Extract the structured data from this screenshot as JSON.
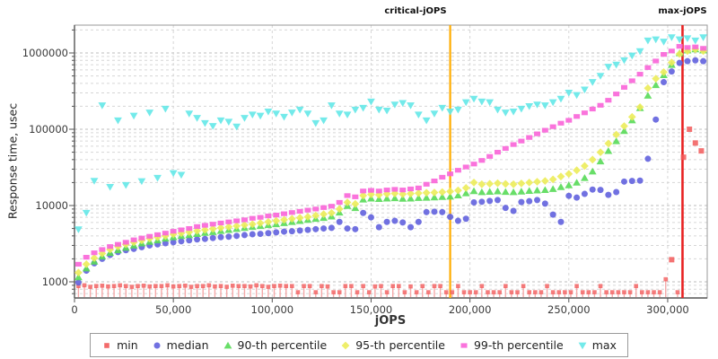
{
  "chart_data": {
    "type": "scatter",
    "title": "",
    "x_axis": {
      "label": "jOPS",
      "min": 0,
      "max": 320000,
      "tick_values": [
        0,
        50000,
        100000,
        150000,
        200000,
        250000,
        300000
      ],
      "tick_labels": [
        "0",
        "50,000",
        "100,000",
        "150,000",
        "200,000",
        "250,000",
        "300,000"
      ]
    },
    "y_axis": {
      "label": "Response time, usec",
      "scale": "log",
      "tick_values": [
        1000,
        10000,
        100000,
        1000000
      ],
      "tick_labels": [
        "1000",
        "10000",
        "100000",
        "1000000"
      ]
    },
    "grid": true,
    "legend_position": "bottom",
    "colors": {
      "grid_major": "#bdbdbd",
      "grid_minor": "#d6d6d6",
      "plot_border": "#999999",
      "axis_line": "#555555"
    },
    "vlines": [
      {
        "label": "critical-jOPS",
        "x": 190000,
        "color": "#FFAC00"
      },
      {
        "label": "max-jOPS",
        "x": 307500,
        "color": "#E82222"
      }
    ],
    "series": [
      {
        "name": "min",
        "shape": "square-stem",
        "color": "#F25B5B",
        "stem_color": "#F5A8A8",
        "x_start": 2000,
        "x_step": 3000,
        "values": [
          880,
          900,
          860,
          880,
          890,
          870,
          880,
          900,
          880,
          860,
          880,
          890,
          870,
          880,
          880,
          900,
          870,
          880,
          890,
          860,
          880,
          880,
          900,
          870,
          880,
          860,
          890,
          880,
          880,
          870,
          900,
          880,
          860,
          880,
          890,
          880,
          880,
          730,
          880,
          880,
          730,
          880,
          870,
          730,
          730,
          880,
          880,
          730,
          880,
          730,
          870,
          880,
          730,
          880,
          880,
          730,
          870,
          730,
          880,
          730,
          880,
          880,
          730,
          730,
          880,
          730,
          730,
          730,
          880,
          730,
          730,
          730,
          880,
          730,
          730,
          880,
          730,
          730,
          730,
          880,
          730,
          730,
          730,
          730,
          880,
          730,
          730,
          730,
          880,
          730,
          730,
          730,
          730,
          730,
          880,
          730,
          730,
          730,
          730,
          1080,
          1950,
          730,
          43000,
          100000,
          66000,
          52000
        ]
      },
      {
        "name": "median",
        "shape": "circle",
        "color": "#6262DE",
        "x_start": 2000,
        "x_step": 4000,
        "values": [
          980,
          1400,
          1750,
          2000,
          2250,
          2450,
          2600,
          2700,
          2850,
          3000,
          3100,
          3200,
          3300,
          3400,
          3500,
          3600,
          3650,
          3750,
          3850,
          3900,
          4000,
          4100,
          4200,
          4250,
          4350,
          4450,
          4550,
          4600,
          4700,
          4800,
          4900,
          5000,
          5100,
          6100,
          5000,
          4900,
          8000,
          7000,
          5200,
          6100,
          6300,
          6000,
          5200,
          6100,
          8200,
          8300,
          8200,
          7100,
          6300,
          6700,
          11000,
          11200,
          11500,
          11800,
          9300,
          8500,
          11100,
          11400,
          11800,
          10600,
          7600,
          6100,
          13400,
          12700,
          14200,
          16200,
          16000,
          13800,
          15000,
          20600,
          21000,
          21200,
          41000,
          134000,
          414000,
          571000,
          740000,
          780000,
          800000,
          780000
        ]
      },
      {
        "name": "90-th percentile",
        "shape": "triangle-up",
        "color": "#58DA58",
        "x_start": 2000,
        "x_step": 4000,
        "values": [
          1150,
          1500,
          1850,
          2150,
          2400,
          2600,
          2800,
          3000,
          3200,
          3350,
          3500,
          3700,
          3850,
          4000,
          4100,
          4250,
          4400,
          4500,
          4650,
          4800,
          4950,
          5100,
          5250,
          5400,
          5550,
          5700,
          5900,
          6100,
          6300,
          6500,
          6700,
          6900,
          7200,
          8100,
          9900,
          9300,
          12000,
          12400,
          12200,
          12400,
          12500,
          12300,
          12400,
          12600,
          12700,
          12800,
          13000,
          13100,
          13600,
          14500,
          15500,
          15000,
          15200,
          15400,
          15100,
          15000,
          15300,
          15600,
          15800,
          16000,
          16500,
          17500,
          18500,
          20000,
          23000,
          28000,
          38000,
          52000,
          70000,
          95000,
          131000,
          190000,
          276000,
          380000,
          513000,
          700000,
          995000,
          1080000,
          1120000,
          1080000
        ]
      },
      {
        "name": "95-th percentile",
        "shape": "diamond",
        "color": "#ECEC5A",
        "x_start": 2000,
        "x_step": 4000,
        "values": [
          1320,
          1700,
          2050,
          2350,
          2650,
          2900,
          3100,
          3300,
          3500,
          3700,
          3850,
          4000,
          4200,
          4350,
          4500,
          4650,
          4800,
          4950,
          5100,
          5250,
          5400,
          5550,
          5700,
          5900,
          6100,
          6300,
          6500,
          6700,
          6900,
          7100,
          7400,
          7700,
          8000,
          9000,
          11000,
          10500,
          13500,
          14000,
          13800,
          14200,
          14400,
          14100,
          14300,
          14500,
          14700,
          14800,
          15000,
          15300,
          15800,
          17000,
          20000,
          19000,
          19300,
          19600,
          19200,
          19000,
          19500,
          20000,
          20500,
          21000,
          22000,
          24000,
          26000,
          29000,
          33000,
          40000,
          50000,
          65000,
          85000,
          110000,
          145000,
          195000,
          345000,
          460000,
          560000,
          750000,
          970000,
          1060000,
          1120000,
          1060000
        ]
      },
      {
        "name": "99-th percentile",
        "shape": "rect",
        "color": "#FA64D8",
        "x_start": 2000,
        "x_step": 4000,
        "values": [
          1700,
          2100,
          2400,
          2650,
          2900,
          3100,
          3300,
          3550,
          3750,
          3950,
          4150,
          4350,
          4600,
          4800,
          5000,
          5300,
          5500,
          5700,
          5900,
          6100,
          6300,
          6500,
          6800,
          7000,
          7300,
          7500,
          7800,
          8100,
          8400,
          8700,
          9000,
          9400,
          9800,
          11000,
          13500,
          13000,
          15500,
          15800,
          15500,
          16000,
          16300,
          16000,
          16500,
          17000,
          19000,
          21000,
          23500,
          26000,
          29000,
          32000,
          35000,
          39000,
          44000,
          50000,
          56000,
          63000,
          70000,
          78000,
          87000,
          97000,
          108000,
          120000,
          131000,
          147000,
          164000,
          184000,
          206000,
          240000,
          290000,
          354000,
          432000,
          527000,
          643000,
          784000,
          957000,
          1060000,
          1220000,
          1180000,
          1200000,
          1150000
        ]
      },
      {
        "name": "max",
        "shape": "triangle-down",
        "color": "#64E8E8",
        "x_start": 2000,
        "x_step": 4000,
        "values": [
          4850,
          8000,
          21000,
          205000,
          17500,
          130000,
          18500,
          150000,
          20800,
          165000,
          23000,
          185000,
          26500,
          25200,
          160000,
          140000,
          120000,
          110000,
          130000,
          125000,
          108000,
          140000,
          155000,
          150000,
          170000,
          160000,
          145000,
          165000,
          180000,
          160000,
          120000,
          130000,
          205000,
          160000,
          155000,
          180000,
          190000,
          230000,
          180000,
          175000,
          210000,
          220000,
          205000,
          155000,
          130000,
          160000,
          190000,
          170000,
          180000,
          225000,
          250000,
          230000,
          225000,
          180000,
          165000,
          170000,
          185000,
          200000,
          210000,
          205000,
          225000,
          250000,
          300000,
          280000,
          330000,
          414000,
          500000,
          657000,
          700000,
          800000,
          921000,
          1050000,
          1450000,
          1500000,
          1400000,
          1600000,
          1500000,
          1550000,
          1450000,
          1600000
        ]
      }
    ]
  }
}
